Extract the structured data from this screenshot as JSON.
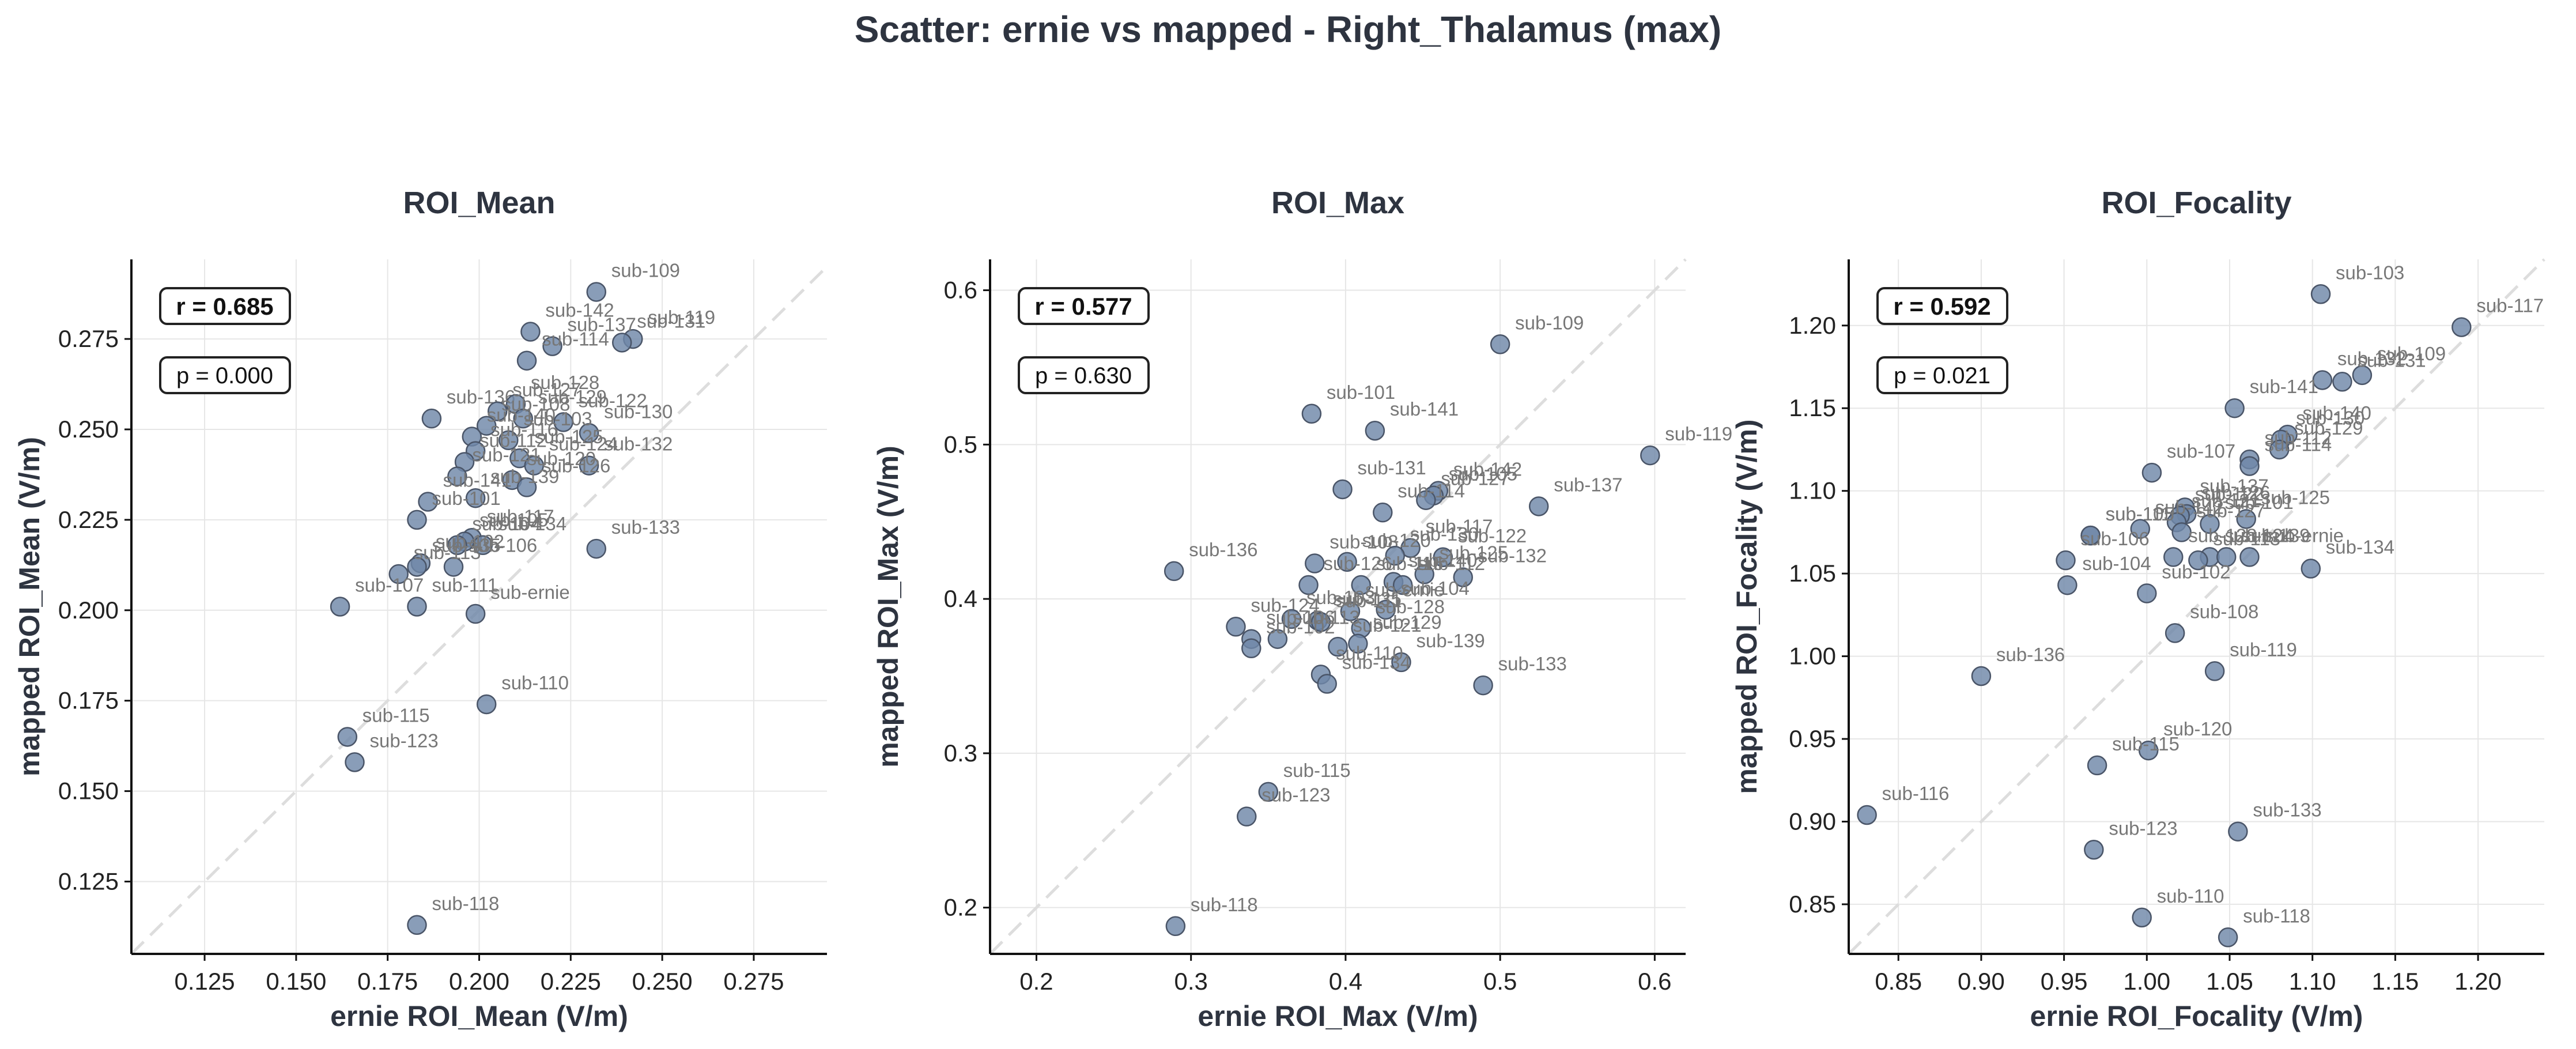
{
  "figure": {
    "title": "Scatter: ernie vs mapped - Right_Thalamus (max)"
  },
  "chart_data": [
    {
      "type": "scatter",
      "title": "ROI_Mean",
      "xlabel": "ernie ROI_Mean (V/m)",
      "ylabel": "mapped ROI_Mean (V/m)",
      "xlim": [
        0.105,
        0.295
      ],
      "ylim": [
        0.105,
        0.297
      ],
      "xticks": [
        "0.125",
        "0.150",
        "0.175",
        "0.200",
        "0.225",
        "0.250",
        "0.275"
      ],
      "yticks": [
        "0.125",
        "0.150",
        "0.175",
        "0.200",
        "0.225",
        "0.250",
        "0.275"
      ],
      "identity_line": true,
      "grid": true,
      "stats": {
        "r": "r = 0.685",
        "p": "p = 0.000"
      },
      "points": [
        {
          "label": "sub-109",
          "x": 0.232,
          "y": 0.288
        },
        {
          "label": "sub-142",
          "x": 0.214,
          "y": 0.277
        },
        {
          "label": "sub-119",
          "x": 0.242,
          "y": 0.275
        },
        {
          "label": "sub-131",
          "x": 0.239,
          "y": 0.274
        },
        {
          "label": "sub-137",
          "x": 0.22,
          "y": 0.273
        },
        {
          "label": "sub-114",
          "x": 0.213,
          "y": 0.269
        },
        {
          "label": "sub-136",
          "x": 0.187,
          "y": 0.253
        },
        {
          "label": "sub-128",
          "x": 0.21,
          "y": 0.257
        },
        {
          "label": "sub-127",
          "x": 0.205,
          "y": 0.255
        },
        {
          "label": "sub-129",
          "x": 0.212,
          "y": 0.253
        },
        {
          "label": "sub-122",
          "x": 0.223,
          "y": 0.252
        },
        {
          "label": "sub-108",
          "x": 0.202,
          "y": 0.251
        },
        {
          "label": "sub-140",
          "x": 0.198,
          "y": 0.248
        },
        {
          "label": "sub-130",
          "x": 0.23,
          "y": 0.249
        },
        {
          "label": "sub-103",
          "x": 0.208,
          "y": 0.247
        },
        {
          "label": "sub-116",
          "x": 0.199,
          "y": 0.244
        },
        {
          "label": "sub-125",
          "x": 0.211,
          "y": 0.242
        },
        {
          "label": "sub-124",
          "x": 0.215,
          "y": 0.24
        },
        {
          "label": "sub-132",
          "x": 0.23,
          "y": 0.24
        },
        {
          "label": "sub-112",
          "x": 0.196,
          "y": 0.241
        },
        {
          "label": "sub-120",
          "x": 0.209,
          "y": 0.236
        },
        {
          "label": "sub-121",
          "x": 0.194,
          "y": 0.237
        },
        {
          "label": "sub-126",
          "x": 0.213,
          "y": 0.234
        },
        {
          "label": "sub-141",
          "x": 0.186,
          "y": 0.23
        },
        {
          "label": "sub-139",
          "x": 0.199,
          "y": 0.231
        },
        {
          "label": "sub-101",
          "x": 0.183,
          "y": 0.225
        },
        {
          "label": "sub-117",
          "x": 0.198,
          "y": 0.22
        },
        {
          "label": "sub-105",
          "x": 0.196,
          "y": 0.219
        },
        {
          "label": "sub-104",
          "x": 0.194,
          "y": 0.218
        },
        {
          "label": "sub-134",
          "x": 0.201,
          "y": 0.218
        },
        {
          "label": "sub-133",
          "x": 0.232,
          "y": 0.217
        },
        {
          "label": "sub-102",
          "x": 0.184,
          "y": 0.213
        },
        {
          "label": "sub-135",
          "x": 0.183,
          "y": 0.212
        },
        {
          "label": "sub-106",
          "x": 0.193,
          "y": 0.212
        },
        {
          "label": "sub-113",
          "x": 0.178,
          "y": 0.21
        },
        {
          "label": "sub-107",
          "x": 0.162,
          "y": 0.201
        },
        {
          "label": "sub-111",
          "x": 0.183,
          "y": 0.201
        },
        {
          "label": "sub-ernie",
          "x": 0.199,
          "y": 0.199
        },
        {
          "label": "sub-110",
          "x": 0.202,
          "y": 0.174
        },
        {
          "label": "sub-115",
          "x": 0.164,
          "y": 0.165
        },
        {
          "label": "sub-123",
          "x": 0.166,
          "y": 0.158
        },
        {
          "label": "sub-118",
          "x": 0.183,
          "y": 0.113
        }
      ]
    },
    {
      "type": "scatter",
      "title": "ROI_Max",
      "xlabel": "ernie ROI_Max (V/m)",
      "ylabel": "mapped ROI_Max (V/m)",
      "xlim": [
        0.17,
        0.62
      ],
      "ylim": [
        0.17,
        0.62
      ],
      "xticks": [
        "0.2",
        "0.3",
        "0.4",
        "0.5",
        "0.6"
      ],
      "yticks": [
        "0.2",
        "0.3",
        "0.4",
        "0.5",
        "0.6"
      ],
      "identity_line": true,
      "grid": true,
      "stats": {
        "r": "r = 0.577",
        "p": "p = 0.630"
      },
      "points": [
        {
          "label": "sub-109",
          "x": 0.5,
          "y": 0.565
        },
        {
          "label": "sub-101",
          "x": 0.378,
          "y": 0.52
        },
        {
          "label": "sub-141",
          "x": 0.419,
          "y": 0.509
        },
        {
          "label": "sub-119",
          "x": 0.597,
          "y": 0.493
        },
        {
          "label": "sub-131",
          "x": 0.398,
          "y": 0.471
        },
        {
          "label": "sub-142",
          "x": 0.46,
          "y": 0.47
        },
        {
          "label": "sub-105",
          "x": 0.457,
          "y": 0.467
        },
        {
          "label": "sub-127",
          "x": 0.452,
          "y": 0.464
        },
        {
          "label": "sub-137",
          "x": 0.525,
          "y": 0.46
        },
        {
          "label": "sub-114",
          "x": 0.424,
          "y": 0.456
        },
        {
          "label": "sub-117",
          "x": 0.442,
          "y": 0.433
        },
        {
          "label": "sub-108",
          "x": 0.38,
          "y": 0.423
        },
        {
          "label": "sub-130",
          "x": 0.432,
          "y": 0.428
        },
        {
          "label": "sub-120",
          "x": 0.401,
          "y": 0.424
        },
        {
          "label": "sub-122",
          "x": 0.463,
          "y": 0.427
        },
        {
          "label": "sub-132",
          "x": 0.476,
          "y": 0.414
        },
        {
          "label": "sub-125",
          "x": 0.451,
          "y": 0.416
        },
        {
          "label": "sub-136",
          "x": 0.289,
          "y": 0.418
        },
        {
          "label": "sub-140",
          "x": 0.431,
          "y": 0.411
        },
        {
          "label": "sub-112",
          "x": 0.437,
          "y": 0.409
        },
        {
          "label": "sub-116",
          "x": 0.41,
          "y": 0.409
        },
        {
          "label": "sub-126",
          "x": 0.376,
          "y": 0.409
        },
        {
          "label": "sub-ernie",
          "x": 0.403,
          "y": 0.392
        },
        {
          "label": "sub-104",
          "x": 0.426,
          "y": 0.393
        },
        {
          "label": "sub-135",
          "x": 0.382,
          "y": 0.386
        },
        {
          "label": "sub-111",
          "x": 0.384,
          "y": 0.385
        },
        {
          "label": "sub-124",
          "x": 0.329,
          "y": 0.382
        },
        {
          "label": "sub-103",
          "x": 0.365,
          "y": 0.387
        },
        {
          "label": "sub-128",
          "x": 0.41,
          "y": 0.381
        },
        {
          "label": "sub-106",
          "x": 0.339,
          "y": 0.374
        },
        {
          "label": "sub-113",
          "x": 0.356,
          "y": 0.374
        },
        {
          "label": "sub-102",
          "x": 0.339,
          "y": 0.368
        },
        {
          "label": "sub-121",
          "x": 0.395,
          "y": 0.369
        },
        {
          "label": "sub-129",
          "x": 0.408,
          "y": 0.371
        },
        {
          "label": "sub-139",
          "x": 0.436,
          "y": 0.359
        },
        {
          "label": "sub-110",
          "x": 0.384,
          "y": 0.351
        },
        {
          "label": "sub-134",
          "x": 0.388,
          "y": 0.345
        },
        {
          "label": "sub-133",
          "x": 0.489,
          "y": 0.344
        },
        {
          "label": "sub-115",
          "x": 0.35,
          "y": 0.275
        },
        {
          "label": "sub-123",
          "x": 0.336,
          "y": 0.259
        },
        {
          "label": "sub-118",
          "x": 0.29,
          "y": 0.188
        }
      ]
    },
    {
      "type": "scatter",
      "title": "ROI_Focality",
      "xlabel": "ernie ROI_Focality (V/m)",
      "ylabel": "mapped ROI_Focality (V/m)",
      "xlim": [
        0.82,
        1.24
      ],
      "ylim": [
        0.82,
        1.24
      ],
      "xticks": [
        "0.85",
        "0.90",
        "0.95",
        "1.00",
        "1.05",
        "1.10",
        "1.15",
        "1.20"
      ],
      "yticks": [
        "0.85",
        "0.90",
        "0.95",
        "1.00",
        "1.05",
        "1.10",
        "1.15",
        "1.20"
      ],
      "identity_line": true,
      "grid": true,
      "stats": {
        "r": "r = 0.592",
        "p": "p = 0.021"
      },
      "points": [
        {
          "label": "sub-103",
          "x": 1.105,
          "y": 1.219
        },
        {
          "label": "sub-117",
          "x": 1.19,
          "y": 1.199
        },
        {
          "label": "sub-109",
          "x": 1.13,
          "y": 1.17
        },
        {
          "label": "sub-131",
          "x": 1.118,
          "y": 1.166
        },
        {
          "label": "sub-132",
          "x": 1.106,
          "y": 1.167
        },
        {
          "label": "sub-141",
          "x": 1.053,
          "y": 1.15
        },
        {
          "label": "sub-140",
          "x": 1.085,
          "y": 1.134
        },
        {
          "label": "sub-130",
          "x": 1.081,
          "y": 1.131
        },
        {
          "label": "sub-129",
          "x": 1.08,
          "y": 1.125
        },
        {
          "label": "sub-112",
          "x": 1.062,
          "y": 1.119
        },
        {
          "label": "sub-107",
          "x": 1.003,
          "y": 1.111
        },
        {
          "label": "sub-114",
          "x": 1.062,
          "y": 1.115
        },
        {
          "label": "sub-137",
          "x": 1.023,
          "y": 1.09
        },
        {
          "label": "sub-126",
          "x": 1.024,
          "y": 1.086
        },
        {
          "label": "sub-122",
          "x": 1.02,
          "y": 1.085
        },
        {
          "label": "sub-125",
          "x": 1.06,
          "y": 1.083
        },
        {
          "label": "sub-121",
          "x": 1.018,
          "y": 1.081
        },
        {
          "label": "sub-101",
          "x": 1.038,
          "y": 1.08
        },
        {
          "label": "sub-105",
          "x": 0.966,
          "y": 1.073
        },
        {
          "label": "sub-111",
          "x": 0.966,
          "y": 1.073
        },
        {
          "label": "sub-142",
          "x": 0.996,
          "y": 1.077
        },
        {
          "label": "sub-127",
          "x": 1.021,
          "y": 1.075
        },
        {
          "label": "sub-ernie",
          "x": 1.062,
          "y": 1.06
        },
        {
          "label": "sub-124",
          "x": 1.038,
          "y": 1.06
        },
        {
          "label": "sub-139",
          "x": 1.048,
          "y": 1.06
        },
        {
          "label": "sub-113",
          "x": 1.031,
          "y": 1.058
        },
        {
          "label": "sub-106",
          "x": 0.951,
          "y": 1.058
        },
        {
          "label": "sub-128",
          "x": 1.016,
          "y": 1.06
        },
        {
          "label": "sub-134",
          "x": 1.099,
          "y": 1.053
        },
        {
          "label": "sub-104",
          "x": 0.952,
          "y": 1.043
        },
        {
          "label": "sub-102",
          "x": 1.0,
          "y": 1.038
        },
        {
          "label": "sub-108",
          "x": 1.017,
          "y": 1.014
        },
        {
          "label": "sub-119",
          "x": 1.041,
          "y": 0.991
        },
        {
          "label": "sub-136",
          "x": 0.9,
          "y": 0.988
        },
        {
          "label": "sub-120",
          "x": 1.001,
          "y": 0.943
        },
        {
          "label": "sub-115",
          "x": 0.97,
          "y": 0.934
        },
        {
          "label": "sub-116",
          "x": 0.831,
          "y": 0.904
        },
        {
          "label": "sub-133",
          "x": 1.055,
          "y": 0.894
        },
        {
          "label": "sub-123",
          "x": 0.968,
          "y": 0.883
        },
        {
          "label": "sub-110",
          "x": 0.997,
          "y": 0.842
        },
        {
          "label": "sub-118",
          "x": 1.049,
          "y": 0.83
        }
      ]
    }
  ]
}
